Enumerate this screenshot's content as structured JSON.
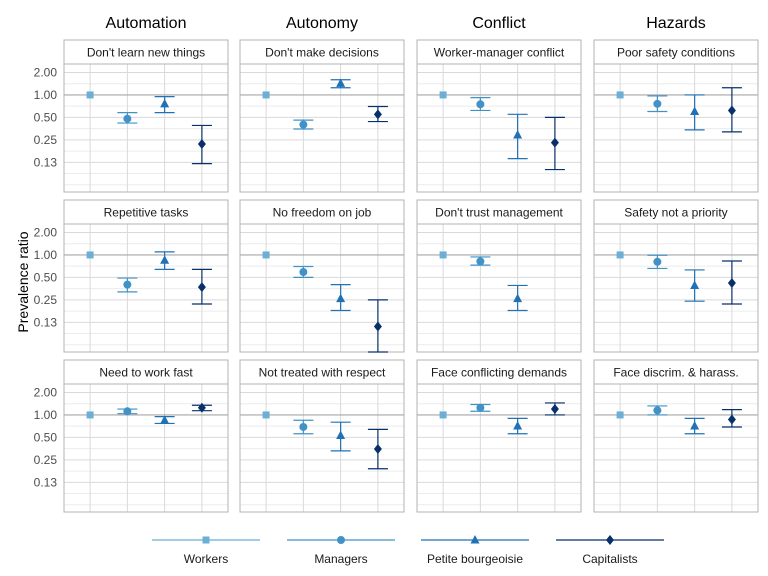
{
  "chart_data": {
    "type": "scatter",
    "ylabel": "Prevalence ratio",
    "y_scale": "log",
    "y_ticks": [
      "2.00",
      "1.00",
      "0.50",
      "0.25",
      "0.13"
    ],
    "y_tick_values": [
      2.0,
      1.0,
      0.5,
      0.25,
      0.125
    ],
    "ylim": [
      0.05,
      2.6
    ],
    "reference_line": 1.0,
    "grid": true,
    "legend_position": "bottom",
    "columns": [
      "Automation",
      "Autonomy",
      "Conflict",
      "Hazards"
    ],
    "series": [
      {
        "name": "Workers",
        "marker": "square",
        "color": "#6baed6"
      },
      {
        "name": "Managers",
        "marker": "circle",
        "color": "#4292c6"
      },
      {
        "name": "Petite bourgeoisie",
        "marker": "triangle",
        "color": "#2171b5"
      },
      {
        "name": "Capitalists",
        "marker": "diamond",
        "color": "#08306b"
      }
    ],
    "panels": [
      {
        "title": "Don't learn new things",
        "row": 0,
        "col": 0,
        "points": [
          [
            1.0,
            1.0,
            1.0
          ],
          [
            0.48,
            0.42,
            0.58
          ],
          [
            0.76,
            0.58,
            0.95
          ],
          [
            0.22,
            0.12,
            0.39
          ]
        ]
      },
      {
        "title": "Don't make decisions",
        "row": 0,
        "col": 1,
        "points": [
          [
            1.0,
            1.0,
            1.0
          ],
          [
            0.4,
            0.35,
            0.46
          ],
          [
            1.43,
            1.25,
            1.6
          ],
          [
            0.55,
            0.44,
            0.7
          ]
        ]
      },
      {
        "title": "Worker-manager conflict",
        "row": 0,
        "col": 2,
        "points": [
          [
            1.0,
            1.0,
            1.0
          ],
          [
            0.75,
            0.62,
            0.92
          ],
          [
            0.29,
            0.14,
            0.55
          ],
          [
            0.23,
            0.1,
            0.5
          ]
        ]
      },
      {
        "title": "Poor safety conditions",
        "row": 0,
        "col": 3,
        "points": [
          [
            1.0,
            1.0,
            1.0
          ],
          [
            0.76,
            0.6,
            0.97
          ],
          [
            0.6,
            0.34,
            1.0
          ],
          [
            0.62,
            0.32,
            1.25
          ]
        ]
      },
      {
        "title": "Repetitive tasks",
        "row": 1,
        "col": 0,
        "points": [
          [
            1.0,
            1.0,
            1.0
          ],
          [
            0.4,
            0.32,
            0.49
          ],
          [
            0.85,
            0.64,
            1.1
          ],
          [
            0.37,
            0.22,
            0.64
          ]
        ]
      },
      {
        "title": "No freedom on job",
        "row": 1,
        "col": 1,
        "points": [
          [
            1.0,
            1.0,
            1.0
          ],
          [
            0.59,
            0.5,
            0.7
          ],
          [
            0.26,
            0.18,
            0.4
          ],
          [
            0.11,
            0.05,
            0.25
          ]
        ]
      },
      {
        "title": "Don't trust management",
        "row": 1,
        "col": 2,
        "points": [
          [
            1.0,
            1.0,
            1.0
          ],
          [
            0.82,
            0.73,
            0.94
          ],
          [
            0.26,
            0.18,
            0.39
          ]
        ]
      },
      {
        "title": "Safety not a priority",
        "row": 1,
        "col": 3,
        "points": [
          [
            1.0,
            1.0,
            1.0
          ],
          [
            0.81,
            0.66,
            0.99
          ],
          [
            0.39,
            0.24,
            0.63
          ],
          [
            0.42,
            0.22,
            0.83
          ]
        ]
      },
      {
        "title": "Need to work fast",
        "row": 2,
        "col": 0,
        "points": [
          [
            1.0,
            1.0,
            1.0
          ],
          [
            1.12,
            1.04,
            1.2
          ],
          [
            0.85,
            0.77,
            0.95
          ],
          [
            1.25,
            1.14,
            1.35
          ]
        ]
      },
      {
        "title": "Not treated with respect",
        "row": 2,
        "col": 1,
        "points": [
          [
            1.0,
            1.0,
            1.0
          ],
          [
            0.69,
            0.56,
            0.85
          ],
          [
            0.53,
            0.33,
            0.8
          ],
          [
            0.35,
            0.19,
            0.64
          ]
        ]
      },
      {
        "title": "Face conflicting demands",
        "row": 2,
        "col": 2,
        "points": [
          [
            1.0,
            1.0,
            1.0
          ],
          [
            1.25,
            1.12,
            1.38
          ],
          [
            0.71,
            0.56,
            0.9
          ],
          [
            1.2,
            1.0,
            1.45
          ]
        ]
      },
      {
        "title": "Face discrim. & harass.",
        "row": 2,
        "col": 3,
        "points": [
          [
            1.0,
            1.0,
            1.0
          ],
          [
            1.15,
            1.0,
            1.32
          ],
          [
            0.71,
            0.56,
            0.9
          ],
          [
            0.87,
            0.69,
            1.18
          ]
        ]
      }
    ]
  }
}
